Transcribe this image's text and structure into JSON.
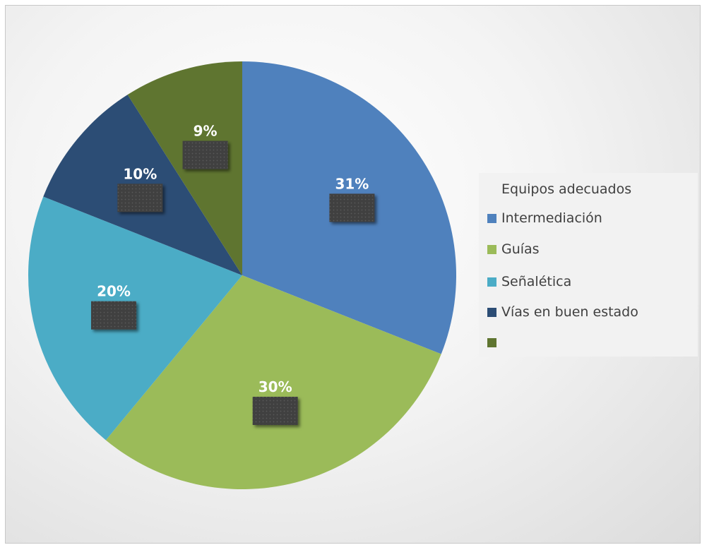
{
  "chart_data": {
    "type": "pie",
    "legend_title": "Equipos adecuados",
    "legend_position": "right",
    "categories": [
      "Intermediación",
      "Guías",
      "Señalética",
      "Vías en buen estado",
      ""
    ],
    "values": [
      31,
      30,
      20,
      10,
      9
    ],
    "labels": [
      "31%",
      "30%",
      "20%",
      "10%",
      "9%"
    ],
    "colors": [
      "#4f81bd",
      "#9bbb59",
      "#4bacc6",
      "#2c4d75",
      "#5f7530"
    ]
  }
}
